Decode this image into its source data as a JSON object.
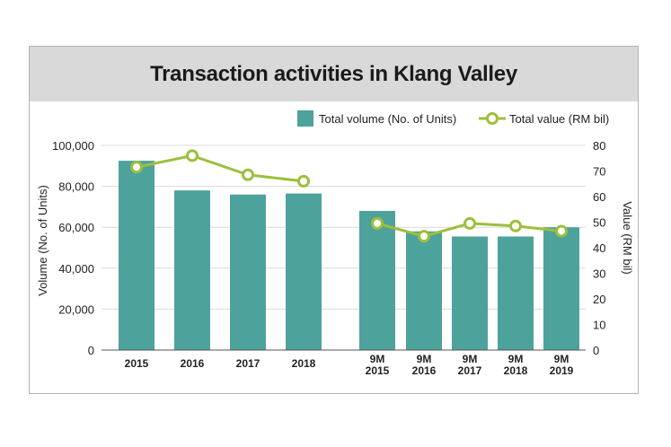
{
  "colors": {
    "bar": "#4ea29c",
    "line": "#9dbf3c",
    "marker_fill": "#ffffff",
    "grid": "#d9d9d9",
    "title_bg": "#d9d9d9"
  },
  "chart_data": {
    "type": "bar",
    "title": "Transaction activities in Klang Valley",
    "categories": [
      [
        "2015"
      ],
      [
        "2016"
      ],
      [
        "2017"
      ],
      [
        "2018"
      ],
      [
        "9M",
        "2015"
      ],
      [
        "9M",
        "2016"
      ],
      [
        "9M",
        "2017"
      ],
      [
        "9M",
        "2018"
      ],
      [
        "9M",
        "2019"
      ]
    ],
    "series": [
      {
        "name": "Total volume (No. of Units)",
        "kind": "bar",
        "axis": "left",
        "values": [
          92500,
          78000,
          76000,
          76500,
          68000,
          58000,
          55500,
          55500,
          60000
        ]
      },
      {
        "name": "Total value (RM bil)",
        "kind": "line",
        "axis": "right",
        "values": [
          71.5,
          76,
          68.5,
          66,
          49.5,
          44.5,
          49.5,
          48.5,
          46.5
        ]
      }
    ],
    "ylabel": "Volume (No. of Units)",
    "ylabel_right": "Value (RM bil)",
    "ylim": [
      0,
      100000
    ],
    "ylim_right": [
      0,
      80
    ],
    "yticks": [
      "0",
      "20,000",
      "40,000",
      "60,000",
      "80,000",
      "100,000"
    ],
    "yticks_right": [
      "0",
      "10",
      "20",
      "30",
      "40",
      "50",
      "60",
      "70",
      "80"
    ],
    "grid": true,
    "legend": "top-right"
  }
}
